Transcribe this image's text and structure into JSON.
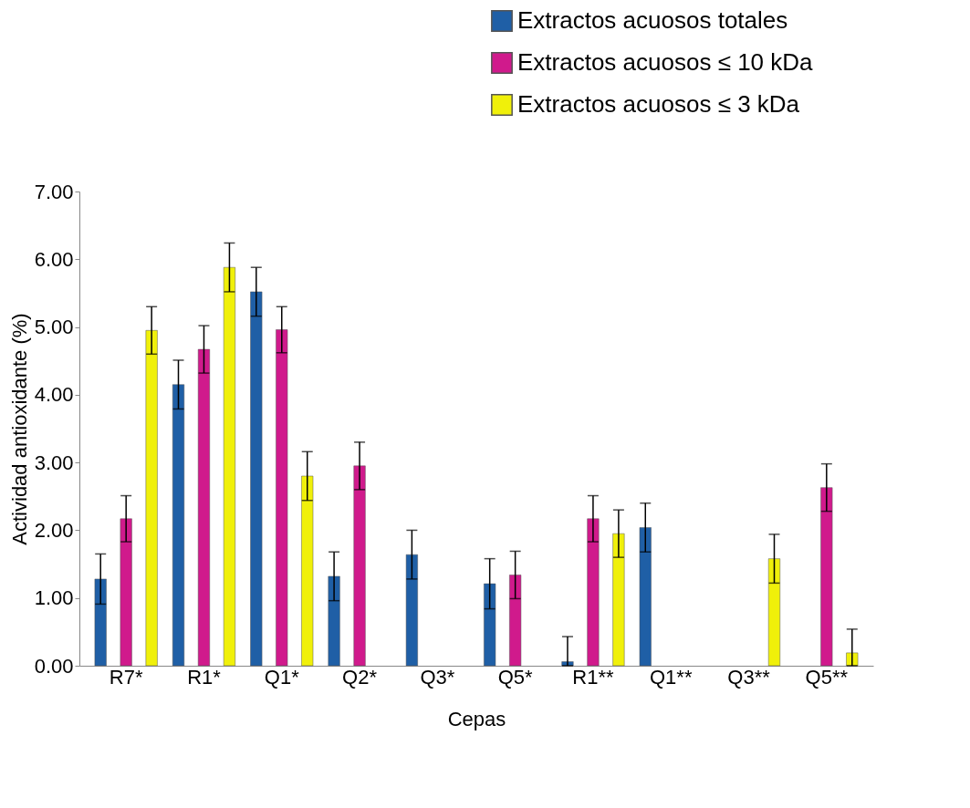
{
  "chart_data": {
    "type": "bar",
    "xlabel": "Cepas",
    "ylabel": "Actividad antioxidante (%)",
    "categories": [
      "R7*",
      "R1*",
      "Q1*",
      "Q2*",
      "Q3*",
      "Q5*",
      "R1**",
      "Q1**",
      "Q3**",
      "Q5**"
    ],
    "series": [
      {
        "name": "Extractos acuosos totales",
        "color": "#1f5fa6",
        "values": [
          1.28,
          4.15,
          5.52,
          1.32,
          1.64,
          1.21,
          0.06,
          2.04,
          null,
          null
        ],
        "errors": [
          0.37,
          0.36,
          0.36,
          0.36,
          0.36,
          0.37,
          [
            0,
            0.43
          ],
          0.36,
          null,
          null
        ]
      },
      {
        "name": "Extractos acuosos ≤ 10 kDa",
        "color": "#d01a8c",
        "values": [
          2.17,
          4.67,
          4.96,
          2.95,
          null,
          1.34,
          2.17,
          null,
          null,
          2.63
        ],
        "errors": [
          0.34,
          0.35,
          0.34,
          0.35,
          null,
          0.35,
          0.34,
          null,
          null,
          0.35
        ]
      },
      {
        "name": "Extractos acuosos ≤ 3 kDa",
        "color": "#f0f00a",
        "values": [
          4.95,
          5.88,
          2.8,
          null,
          null,
          null,
          1.95,
          null,
          1.58,
          0.19
        ],
        "errors": [
          0.35,
          0.36,
          0.36,
          null,
          null,
          null,
          0.35,
          null,
          0.36,
          [
            0,
            0.54
          ]
        ]
      }
    ],
    "ylim": [
      0,
      7
    ],
    "yticks": [
      {
        "value": 0,
        "label": "0.00"
      },
      {
        "value": 1,
        "label": "1.00"
      },
      {
        "value": 2,
        "label": "2.00"
      },
      {
        "value": 3,
        "label": "3.00"
      },
      {
        "value": 4,
        "label": "4.00"
      },
      {
        "value": 5,
        "label": "5.00"
      },
      {
        "value": 6,
        "label": "6.00"
      },
      {
        "value": 7,
        "label": "7.00"
      }
    ],
    "grid": false,
    "legend": "top right"
  }
}
